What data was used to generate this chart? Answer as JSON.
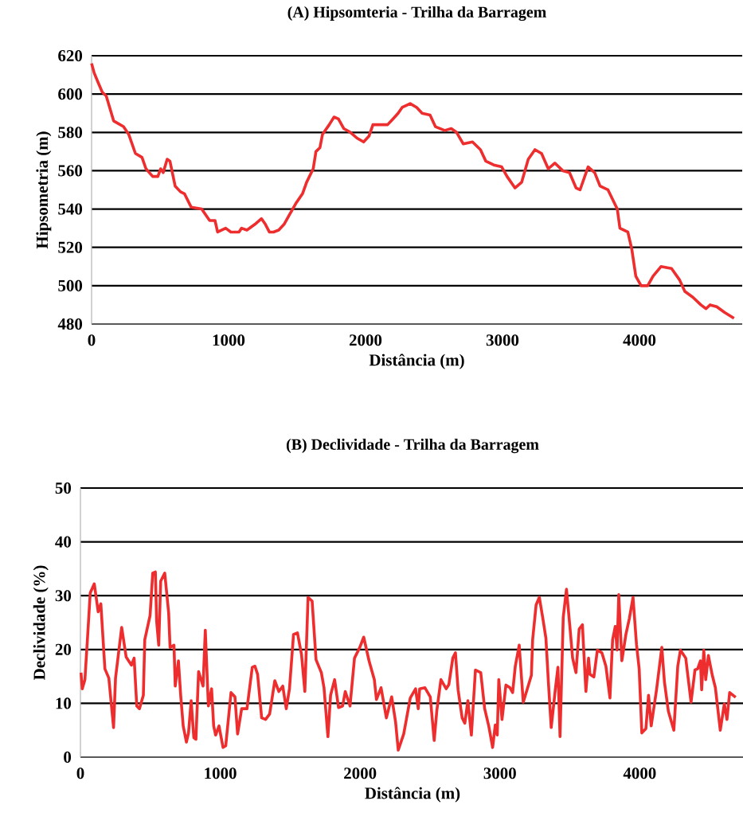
{
  "chart_data": [
    {
      "type": "line",
      "title": "(A) Hipsomteria - Trilha da Barragem",
      "xlabel": "Distância (m)",
      "ylabel": "Hipsometria (m)",
      "color": "#ee2e2e",
      "grid": "y",
      "xlim": [
        0,
        4750
      ],
      "xticks": [
        0,
        1000,
        2000,
        3000,
        4000
      ],
      "ylim": [
        480,
        620
      ],
      "yticks": [
        480,
        500,
        520,
        540,
        560,
        580,
        600,
        620
      ],
      "x": [
        0,
        19,
        48,
        78,
        107,
        161,
        233,
        271,
        320,
        368,
        397,
        446,
        484,
        504,
        523,
        552,
        572,
        610,
        649,
        678,
        727,
        804,
        862,
        901,
        920,
        979,
        1017,
        1076,
        1095,
        1134,
        1192,
        1240,
        1269,
        1298,
        1328,
        1366,
        1405,
        1444,
        1492,
        1540,
        1570,
        1618,
        1638,
        1667,
        1686,
        1735,
        1770,
        1802,
        1841,
        1890,
        1938,
        1986,
        2025,
        2054,
        2103,
        2161,
        2200,
        2238,
        2267,
        2326,
        2374,
        2413,
        2471,
        2510,
        2578,
        2626,
        2665,
        2713,
        2781,
        2839,
        2878,
        2936,
        2994,
        3033,
        3091,
        3140,
        3188,
        3237,
        3285,
        3334,
        3382,
        3440,
        3489,
        3537,
        3566,
        3625,
        3673,
        3712,
        3770,
        3838,
        3857,
        3915,
        3944,
        3973,
        4012,
        4060,
        4099,
        4157,
        4234,
        4293,
        4331,
        4389,
        4448,
        4486,
        4515,
        4564,
        4622,
        4690
      ],
      "values": [
        616,
        611,
        606,
        601,
        599,
        586,
        583,
        579,
        569,
        567,
        561,
        557,
        557,
        561,
        559,
        566,
        565,
        552,
        549,
        548,
        541,
        540,
        534,
        534,
        528,
        530,
        528,
        528,
        530,
        529,
        532,
        535,
        532,
        528,
        528,
        529,
        532,
        537,
        543,
        548,
        554,
        561,
        570,
        572,
        579,
        584,
        588,
        587,
        582,
        580,
        577,
        575,
        578,
        584,
        584,
        584,
        587,
        590,
        593,
        595,
        593,
        590,
        589,
        583,
        581,
        582,
        580,
        574,
        575,
        571,
        565,
        563,
        562,
        557,
        551,
        554,
        566,
        571,
        569,
        561,
        564,
        560,
        559,
        551,
        550,
        562,
        559,
        552,
        550,
        540,
        530,
        528,
        519,
        505,
        500,
        500,
        505,
        510,
        509,
        503,
        497,
        494,
        490,
        488,
        490,
        489,
        486,
        483
      ]
    },
    {
      "type": "line",
      "title": "(B) Declividade - Trilha da Barragem",
      "xlabel": "Distância (m)",
      "ylabel": "Declividade (%)",
      "color": "#ee2e2e",
      "grid": "y",
      "xlim": [
        0,
        4750
      ],
      "xticks": [
        0,
        1000,
        2000,
        3000,
        4000
      ],
      "ylim": [
        0,
        50
      ],
      "yticks": [
        0,
        10,
        20,
        30,
        40,
        50
      ],
      "x": [
        4,
        13,
        32,
        51,
        70,
        99,
        127,
        146,
        175,
        203,
        237,
        251,
        295,
        327,
        365,
        384,
        403,
        422,
        450,
        460,
        498,
        517,
        536,
        545,
        560,
        574,
        603,
        631,
        641,
        669,
        678,
        701,
        717,
        735,
        758,
        773,
        792,
        811,
        826,
        845,
        877,
        893,
        915,
        938,
        953,
        967,
        991,
        1020,
        1039,
        1077,
        1105,
        1124,
        1153,
        1191,
        1229,
        1248,
        1267,
        1296,
        1324,
        1353,
        1390,
        1419,
        1447,
        1472,
        1495,
        1524,
        1552,
        1581,
        1605,
        1628,
        1657,
        1685,
        1723,
        1742,
        1770,
        1789,
        1818,
        1846,
        1875,
        1894,
        1928,
        1960,
        1998,
        2026,
        2064,
        2102,
        2117,
        2150,
        2188,
        2226,
        2254,
        2273,
        2312,
        2359,
        2397,
        2416,
        2426,
        2464,
        2502,
        2530,
        2549,
        2578,
        2616,
        2635,
        2663,
        2682,
        2701,
        2730,
        2749,
        2771,
        2796,
        2825,
        2863,
        2891,
        2920,
        2948,
        2967,
        2981,
        2992,
        3015,
        3043,
        3072,
        3091,
        3110,
        3138,
        3167,
        3196,
        3225,
        3234,
        3259,
        3282,
        3310,
        3329,
        3348,
        3367,
        3396,
        3415,
        3430,
        3453,
        3476,
        3501,
        3520,
        3544,
        3567,
        3590,
        3615,
        3634,
        3644,
        3672,
        3697,
        3729,
        3758,
        3787,
        3806,
        3825,
        3838,
        3850,
        3872,
        3901,
        3926,
        3952,
        3977,
        3996,
        4015,
        4044,
        4063,
        4082,
        4120,
        4158,
        4177,
        4205,
        4244,
        4272,
        4291,
        4329,
        4367,
        4395,
        4414,
        4434,
        4443,
        4458,
        4472,
        4491,
        4519,
        4541,
        4576,
        4605,
        4624,
        4643,
        4686
      ],
      "values": [
        15.7,
        12.7,
        14.4,
        22.3,
        30.5,
        32.2,
        27.0,
        28.5,
        16.4,
        14.7,
        5.5,
        14.7,
        24.1,
        18.6,
        17.1,
        18.4,
        9.5,
        9.0,
        11.5,
        21.8,
        26.3,
        34.2,
        34.4,
        25.3,
        20.8,
        32.7,
        34.2,
        26.8,
        20.4,
        20.8,
        13.2,
        17.9,
        11.5,
        5.8,
        2.8,
        4.5,
        10.5,
        3.6,
        3.3,
        15.9,
        13.2,
        23.6,
        9.5,
        12.7,
        5.8,
        4.1,
        5.8,
        1.8,
        2.1,
        12.0,
        11.2,
        4.3,
        9.0,
        9.0,
        16.7,
        16.9,
        15.4,
        7.3,
        7.0,
        8.0,
        14.2,
        12.2,
        13.2,
        9.0,
        12.7,
        22.8,
        23.1,
        19.1,
        12.2,
        29.7,
        29.0,
        18.1,
        15.7,
        12.9,
        3.8,
        11.5,
        14.4,
        9.2,
        9.5,
        12.2,
        9.5,
        18.4,
        20.4,
        22.3,
        17.9,
        14.4,
        10.7,
        12.9,
        7.3,
        11.2,
        6.5,
        1.3,
        4.3,
        11.0,
        12.7,
        9.0,
        12.7,
        12.9,
        11.2,
        3.1,
        8.7,
        14.4,
        12.7,
        13.5,
        18.4,
        19.4,
        12.5,
        7.3,
        6.3,
        10.5,
        4.1,
        16.2,
        15.7,
        9.0,
        5.8,
        1.8,
        6.0,
        4.1,
        14.4,
        7.0,
        13.4,
        12.9,
        12.0,
        16.9,
        20.8,
        10.2,
        12.7,
        15.2,
        21.8,
        28.3,
        29.7,
        25.3,
        22.1,
        13.4,
        5.5,
        12.5,
        16.7,
        3.8,
        26.0,
        31.2,
        24.1,
        18.4,
        15.7,
        23.8,
        24.6,
        12.2,
        18.4,
        15.4,
        14.9,
        19.9,
        19.4,
        16.9,
        11.0,
        21.8,
        24.3,
        19.9,
        30.2,
        17.9,
        22.8,
        25.8,
        29.7,
        20.9,
        16.4,
        4.5,
        5.3,
        11.5,
        5.8,
        12.5,
        20.4,
        13.9,
        8.5,
        5.0,
        16.9,
        19.9,
        18.4,
        10.2,
        16.2,
        16.4,
        17.9,
        12.5,
        19.9,
        14.4,
        18.9,
        15.2,
        12.9,
        5.0,
        9.9,
        7.0,
        12.0,
        11.1
      ]
    }
  ]
}
